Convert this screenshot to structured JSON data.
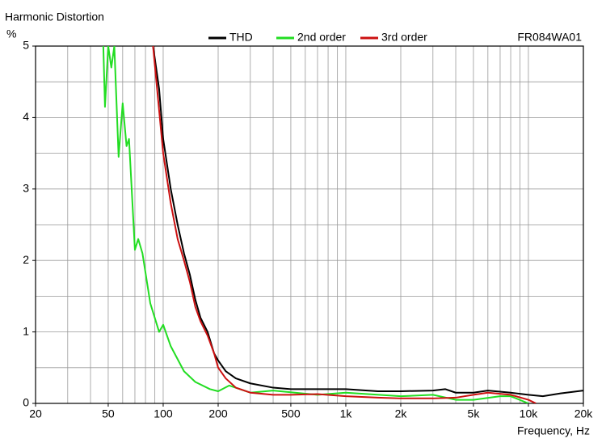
{
  "chart_data": {
    "type": "line",
    "title": "Harmonic Distortion",
    "y_label": "%",
    "x_label": "Frequency, Hz",
    "annotation": "FR084WA01",
    "log_x": true,
    "grid": true,
    "xlim": [
      20,
      20000
    ],
    "ylim": [
      0,
      5
    ],
    "xticks": [
      20,
      50,
      100,
      200,
      500,
      {
        "value": 1000,
        "label": "1k"
      },
      {
        "value": 2000,
        "label": "2k"
      },
      {
        "value": 5000,
        "label": "5k"
      },
      {
        "value": 10000,
        "label": "10k"
      },
      {
        "value": 20000,
        "label": "20k"
      }
    ],
    "xgrid": [
      30,
      40,
      50,
      60,
      70,
      80,
      90,
      100,
      200,
      300,
      400,
      500,
      600,
      700,
      800,
      900,
      1000,
      2000,
      3000,
      4000,
      5000,
      6000,
      7000,
      8000,
      9000,
      10000
    ],
    "yticks": [
      0,
      1,
      2,
      3,
      4,
      5
    ],
    "ygrid": [
      0.5,
      1,
      1.5,
      2,
      2.5,
      3,
      3.5,
      4,
      4.5
    ],
    "series": [
      {
        "name": "THD",
        "color": "#000000",
        "x": [
          88,
          95,
          100,
          110,
          120,
          130,
          140,
          150,
          160,
          175,
          190,
          200,
          220,
          250,
          300,
          400,
          500,
          700,
          1000,
          1500,
          2000,
          3000,
          3500,
          4000,
          5000,
          6000,
          8000,
          10000,
          12000,
          15000,
          20000
        ],
        "values": [
          5,
          4.4,
          3.7,
          3.0,
          2.5,
          2.1,
          1.8,
          1.45,
          1.2,
          1.0,
          0.7,
          0.6,
          0.45,
          0.35,
          0.28,
          0.22,
          0.2,
          0.2,
          0.2,
          0.17,
          0.17,
          0.18,
          0.2,
          0.15,
          0.15,
          0.18,
          0.15,
          0.12,
          0.1,
          0.14,
          0.18
        ]
      },
      {
        "name": "2nd order",
        "color": "#22dd22",
        "x": [
          47,
          48,
          50,
          52,
          54,
          57,
          60,
          63,
          65,
          70,
          73,
          77,
          85,
          95,
          100,
          110,
          130,
          150,
          180,
          200,
          230,
          300,
          400,
          700,
          1000,
          2000,
          3000,
          4000,
          5000,
          7000,
          8000,
          10000
        ],
        "values": [
          5,
          4.15,
          5,
          4.7,
          5,
          3.45,
          4.2,
          3.6,
          3.7,
          2.15,
          2.3,
          2.1,
          1.4,
          1.0,
          1.1,
          0.8,
          0.45,
          0.3,
          0.2,
          0.17,
          0.25,
          0.15,
          0.18,
          0.12,
          0.15,
          0.1,
          0.12,
          0.05,
          0.05,
          0.1,
          0.1,
          0.0
        ]
      },
      {
        "name": "3rd order",
        "color": "#cc1111",
        "x": [
          88,
          100,
          110,
          120,
          130,
          140,
          150,
          160,
          175,
          190,
          200,
          220,
          250,
          300,
          400,
          500,
          700,
          1000,
          1500,
          2000,
          3000,
          4000,
          5000,
          6000,
          8000,
          10000,
          11000
        ],
        "values": [
          5,
          3.5,
          2.8,
          2.3,
          2.0,
          1.7,
          1.35,
          1.15,
          0.95,
          0.7,
          0.5,
          0.35,
          0.22,
          0.15,
          0.12,
          0.12,
          0.13,
          0.1,
          0.08,
          0.07,
          0.07,
          0.08,
          0.12,
          0.15,
          0.12,
          0.05,
          0.0
        ]
      }
    ]
  }
}
